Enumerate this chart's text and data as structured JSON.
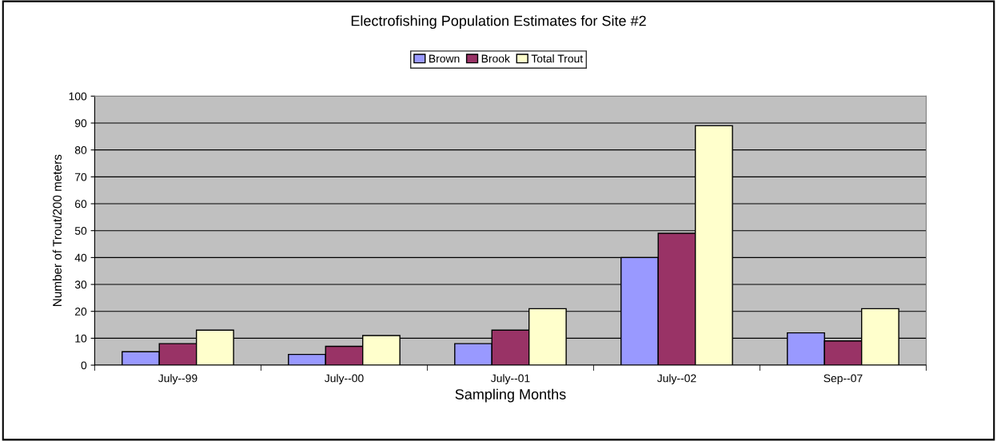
{
  "chart_data": {
    "type": "bar",
    "title": "Electrofishing Population Estimates for Site #2",
    "xlabel": "Sampling Months",
    "ylabel": "Number of Trout/200 meters",
    "categories": [
      "July--99",
      "July--00",
      "July--01",
      "July--02",
      "Sep--07"
    ],
    "series": [
      {
        "name": "Brown",
        "color": "#9999ff",
        "values": [
          5,
          4,
          8,
          40,
          12
        ]
      },
      {
        "name": "Brook",
        "color": "#993366",
        "values": [
          8,
          7,
          13,
          49,
          9
        ]
      },
      {
        "name": "Total Trout",
        "color": "#ffffcc",
        "values": [
          13,
          11,
          21,
          89,
          21
        ]
      }
    ],
    "ylim": [
      0,
      100
    ],
    "yticks": [
      0,
      10,
      20,
      30,
      40,
      50,
      60,
      70,
      80,
      90,
      100
    ],
    "grid": "y",
    "legend": "top"
  }
}
